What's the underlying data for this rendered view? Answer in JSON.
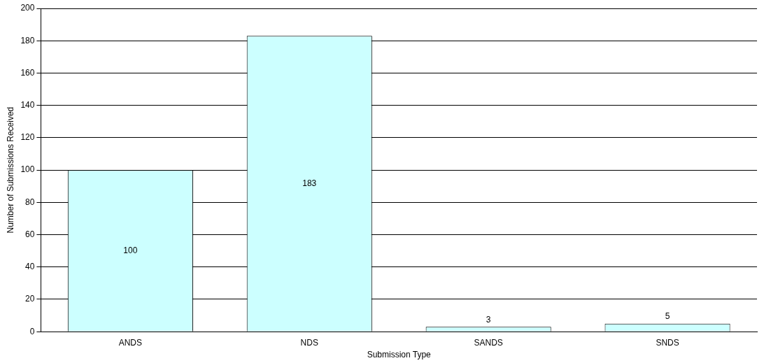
{
  "chart_data": {
    "type": "bar",
    "xlabel": "Submission Type",
    "ylabel": "Number of Submissions Received",
    "categories": [
      "ANDS",
      "NDS",
      "SANDS",
      "SNDS"
    ],
    "values": [
      100,
      183,
      3,
      5
    ],
    "color": "#ccffff",
    "ylim": [
      0,
      200
    ],
    "yticks": [
      0,
      20,
      40,
      60,
      80,
      100,
      120,
      140,
      160,
      180,
      200
    ],
    "grid": "y",
    "data_labels": true,
    "legend": false
  }
}
